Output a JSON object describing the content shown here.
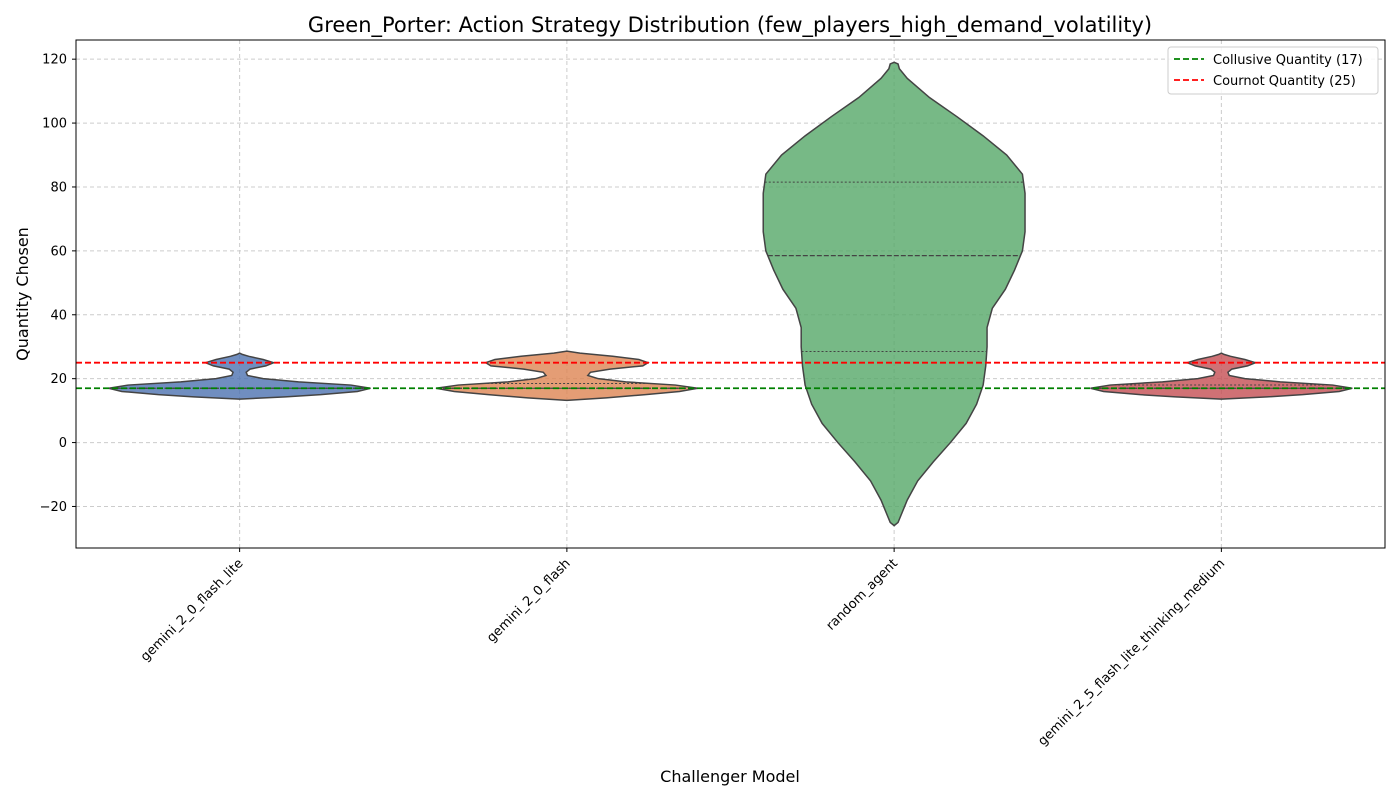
{
  "chart_data": {
    "type": "violin",
    "title": "Green_Porter: Action Strategy Distribution (few_players_high_demand_volatility)",
    "xlabel": "Challenger Model",
    "ylabel": "Quantity Chosen",
    "categories": [
      "gemini_2_0_flash_lite",
      "gemini_2_0_flash",
      "random_agent",
      "gemini_2_5_flash_lite_thinking_medium"
    ],
    "ylim": [
      -33,
      126
    ],
    "yticks": [
      -20,
      0,
      20,
      40,
      60,
      80,
      100,
      120
    ],
    "ytick_labels": [
      "−20",
      "0",
      "20",
      "40",
      "60",
      "80",
      "100",
      "120"
    ],
    "grid": true,
    "legend_position": "top-right",
    "reference_lines": [
      {
        "label": "Collusive Quantity (17)",
        "value": 17,
        "color": "#008000",
        "style": "dashed"
      },
      {
        "label": "Cournot Quantity (25)",
        "value": 25,
        "color": "#ff0000",
        "style": "dashed"
      }
    ],
    "violins": [
      {
        "name": "gemini_2_0_flash_lite",
        "color": "#4c72b0",
        "range": [
          13.6,
          28
        ],
        "quartiles": [
          17,
          17,
          17
        ],
        "profile": [
          [
            13.6,
            0.0
          ],
          [
            14.3,
            0.35
          ],
          [
            15.0,
            0.62
          ],
          [
            16.0,
            0.9
          ],
          [
            17.0,
            1.0
          ],
          [
            18.0,
            0.85
          ],
          [
            19.0,
            0.45
          ],
          [
            20.0,
            0.18
          ],
          [
            21.0,
            0.06
          ],
          [
            22.0,
            0.05
          ],
          [
            23.0,
            0.08
          ],
          [
            24.0,
            0.2
          ],
          [
            25.0,
            0.26
          ],
          [
            26.0,
            0.18
          ],
          [
            27.0,
            0.07
          ],
          [
            27.6,
            0.02
          ],
          [
            28.0,
            0.0
          ]
        ]
      },
      {
        "name": "gemini_2_0_flash",
        "color": "#dd8452",
        "range": [
          13.2,
          28.6
        ],
        "quartiles": [
          17,
          17,
          18.5
        ],
        "profile": [
          [
            13.2,
            0.0
          ],
          [
            14.0,
            0.3
          ],
          [
            15.0,
            0.6
          ],
          [
            16.0,
            0.86
          ],
          [
            17.0,
            1.0
          ],
          [
            18.0,
            0.83
          ],
          [
            19.0,
            0.45
          ],
          [
            20.0,
            0.24
          ],
          [
            21.0,
            0.16
          ],
          [
            22.0,
            0.18
          ],
          [
            23.0,
            0.33
          ],
          [
            24.0,
            0.58
          ],
          [
            25.0,
            0.62
          ],
          [
            26.0,
            0.55
          ],
          [
            27.0,
            0.35
          ],
          [
            28.0,
            0.1
          ],
          [
            28.6,
            0.0
          ]
        ]
      },
      {
        "name": "random_agent",
        "color": "#55a868",
        "range": [
          -26,
          119
        ],
        "quartiles": [
          28.5,
          58.5,
          81.5
        ],
        "profile": [
          [
            -26.0,
            0.0
          ],
          [
            -25.0,
            0.03
          ],
          [
            -22.0,
            0.06
          ],
          [
            -18.0,
            0.1
          ],
          [
            -12.0,
            0.18
          ],
          [
            -6.0,
            0.3
          ],
          [
            0.0,
            0.43
          ],
          [
            6.0,
            0.55
          ],
          [
            12.0,
            0.63
          ],
          [
            18.0,
            0.68
          ],
          [
            24.0,
            0.7
          ],
          [
            30.0,
            0.71
          ],
          [
            36.0,
            0.71
          ],
          [
            42.0,
            0.75
          ],
          [
            48.0,
            0.85
          ],
          [
            54.0,
            0.92
          ],
          [
            60.0,
            0.98
          ],
          [
            66.0,
            1.0
          ],
          [
            72.0,
            1.0
          ],
          [
            78.0,
            1.0
          ],
          [
            84.0,
            0.98
          ],
          [
            90.0,
            0.86
          ],
          [
            96.0,
            0.68
          ],
          [
            102.0,
            0.48
          ],
          [
            108.0,
            0.27
          ],
          [
            114.0,
            0.1
          ],
          [
            117.0,
            0.04
          ],
          [
            118.5,
            0.03
          ],
          [
            119.0,
            0.0
          ]
        ]
      },
      {
        "name": "gemini_2_5_flash_lite_thinking_medium",
        "color": "#c44e52",
        "range": [
          13.6,
          28
        ],
        "quartiles": [
          17,
          17,
          18
        ],
        "profile": [
          [
            13.6,
            0.0
          ],
          [
            14.3,
            0.35
          ],
          [
            15.0,
            0.62
          ],
          [
            16.0,
            0.9
          ],
          [
            17.0,
            1.0
          ],
          [
            18.0,
            0.85
          ],
          [
            19.0,
            0.45
          ],
          [
            20.0,
            0.18
          ],
          [
            21.0,
            0.06
          ],
          [
            22.0,
            0.05
          ],
          [
            23.0,
            0.08
          ],
          [
            24.0,
            0.2
          ],
          [
            25.0,
            0.26
          ],
          [
            26.0,
            0.18
          ],
          [
            27.0,
            0.07
          ],
          [
            27.6,
            0.02
          ],
          [
            28.0,
            0.0
          ]
        ]
      }
    ]
  }
}
